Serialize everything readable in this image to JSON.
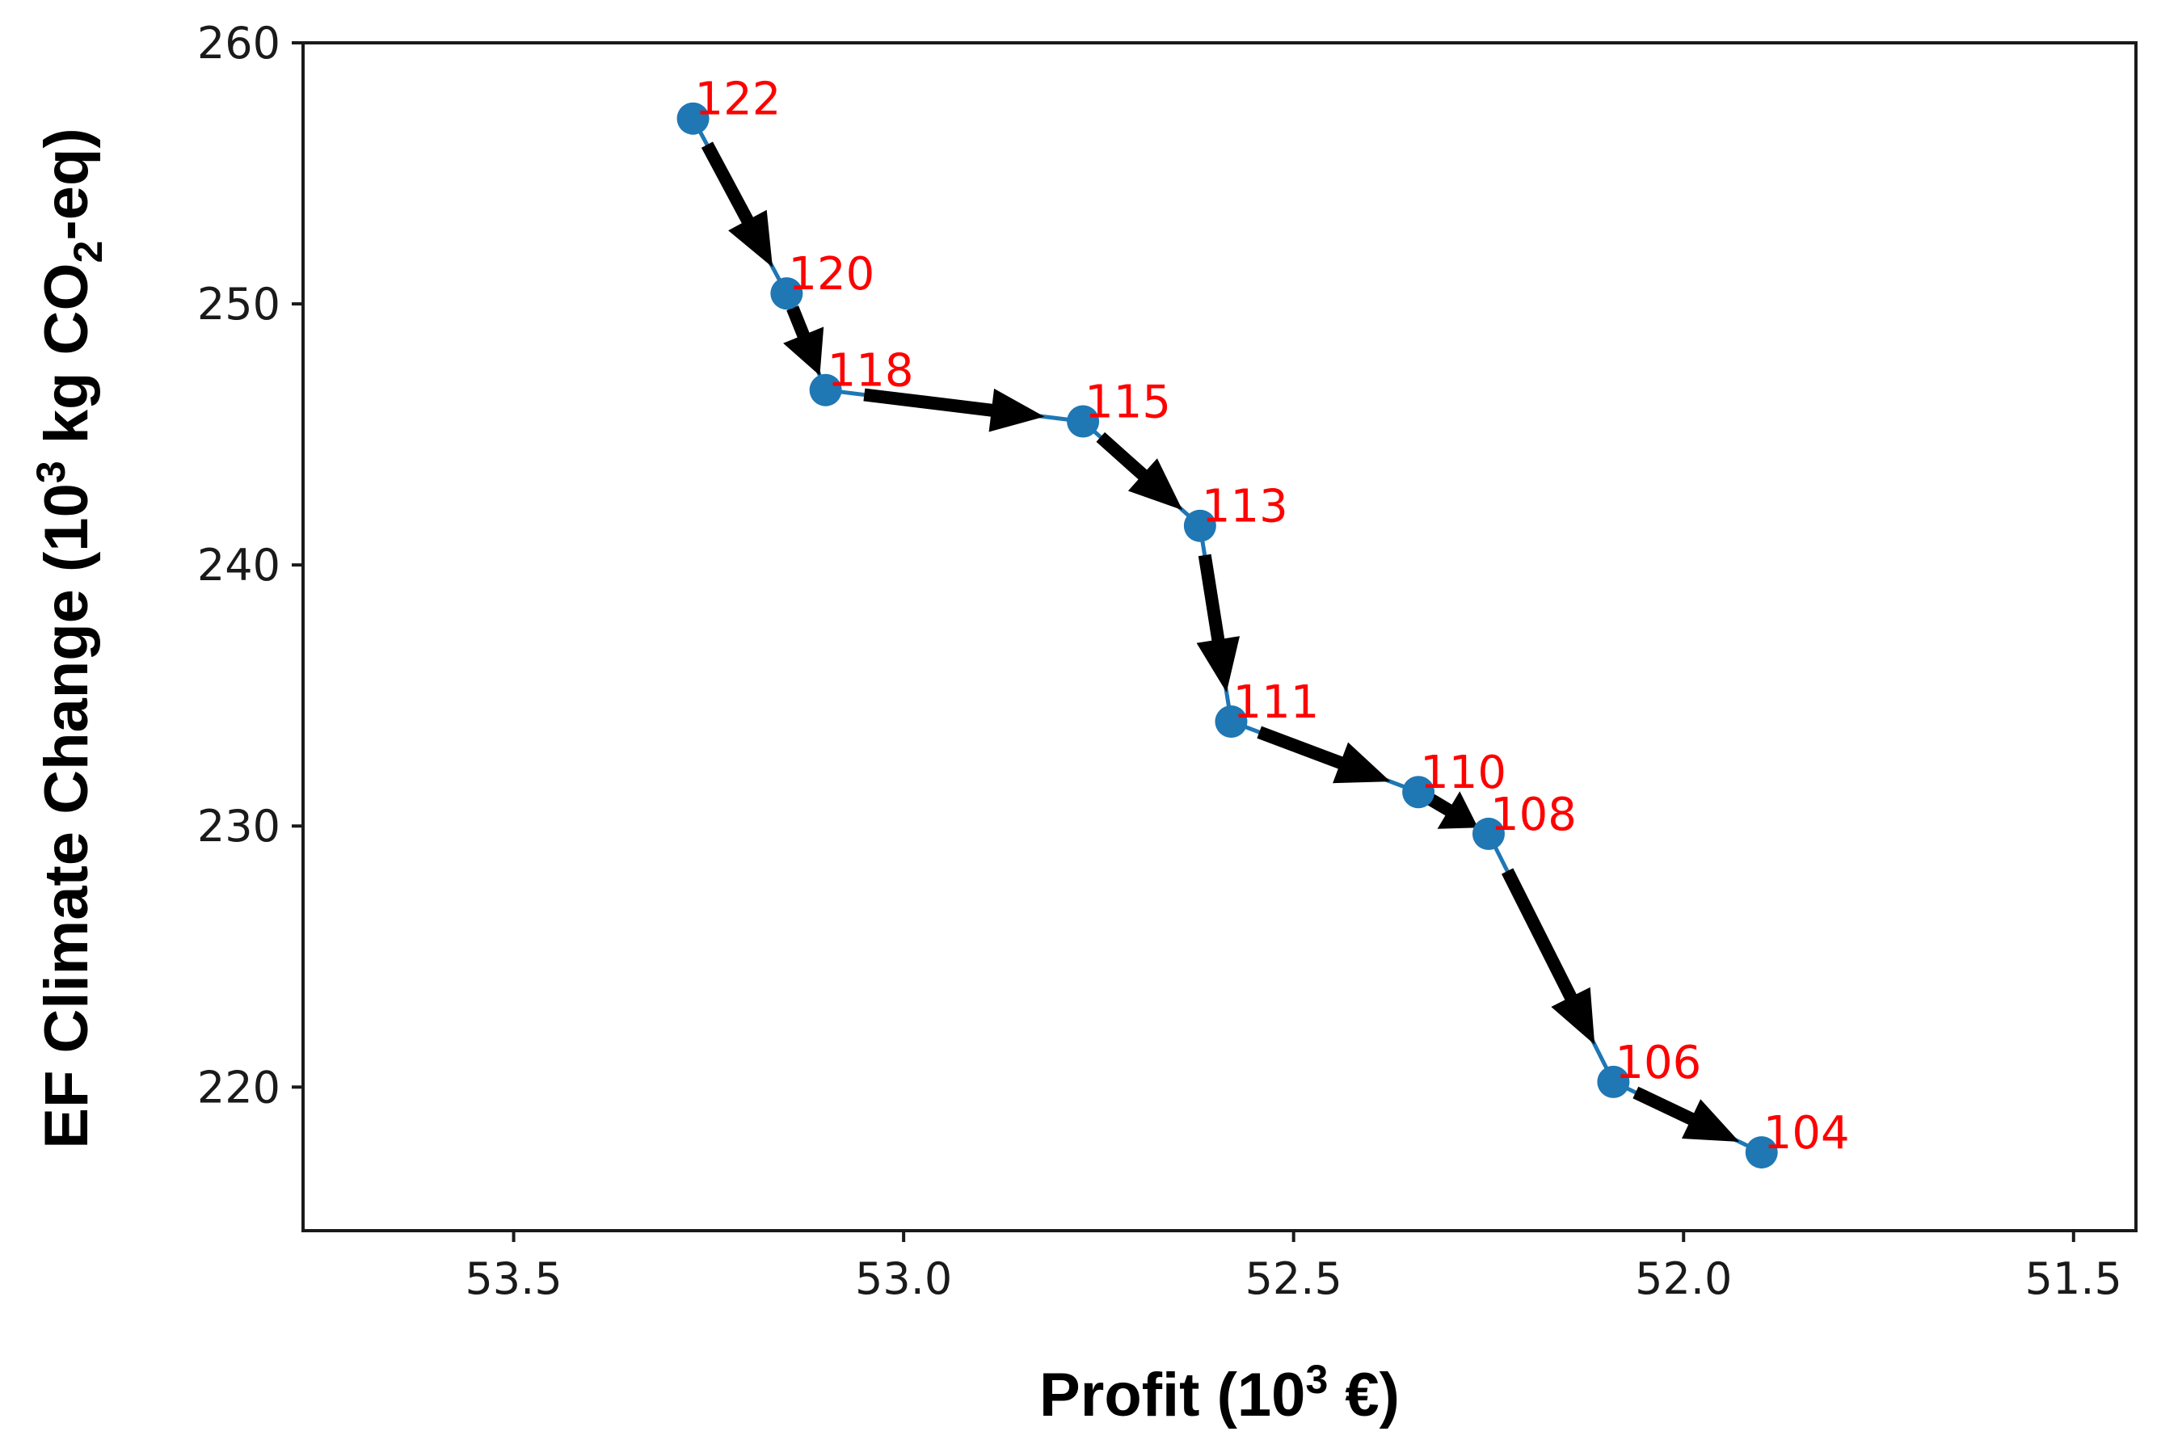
{
  "chart_data": {
    "type": "line",
    "title": "",
    "xlabel": "Profit (10³ €)",
    "ylabel": "EF Climate Change (10³ kg CO₂-eq)",
    "xlabel_parts": [
      "Profit (10",
      "3",
      " €)"
    ],
    "ylabel_parts": [
      "EF Climate Change (10",
      "3",
      " kg CO",
      "2",
      "-eq)"
    ],
    "x_axis_inverted": true,
    "xlim": [
      53.77,
      51.42
    ],
    "ylim": [
      214.5,
      260
    ],
    "x_ticks": [
      53.5,
      53.0,
      52.5,
      52.0,
      51.5
    ],
    "x_tick_labels": [
      "53.5",
      "53.0",
      "52.5",
      "52.0",
      "51.5"
    ],
    "y_ticks": [
      220,
      230,
      240,
      250,
      260
    ],
    "y_tick_labels": [
      "220",
      "230",
      "240",
      "250",
      "260"
    ],
    "grid": false,
    "series": [
      {
        "name": "trade-off",
        "color": "#1f77b4",
        "label_color": "#ff0000",
        "arrow_color": "#000000",
        "points": [
          {
            "label": "122",
            "x": 53.27,
            "y": 257.1
          },
          {
            "label": "120",
            "x": 53.15,
            "y": 250.4
          },
          {
            "label": "118",
            "x": 53.1,
            "y": 246.7
          },
          {
            "label": "115",
            "x": 52.77,
            "y": 245.5
          },
          {
            "label": "113",
            "x": 52.62,
            "y": 241.5
          },
          {
            "label": "111",
            "x": 52.58,
            "y": 234.0
          },
          {
            "label": "110",
            "x": 52.34,
            "y": 231.3
          },
          {
            "label": "108",
            "x": 52.25,
            "y": 229.7
          },
          {
            "label": "106",
            "x": 52.09,
            "y": 220.2
          },
          {
            "label": "104",
            "x": 51.9,
            "y": 217.5
          }
        ]
      }
    ]
  }
}
